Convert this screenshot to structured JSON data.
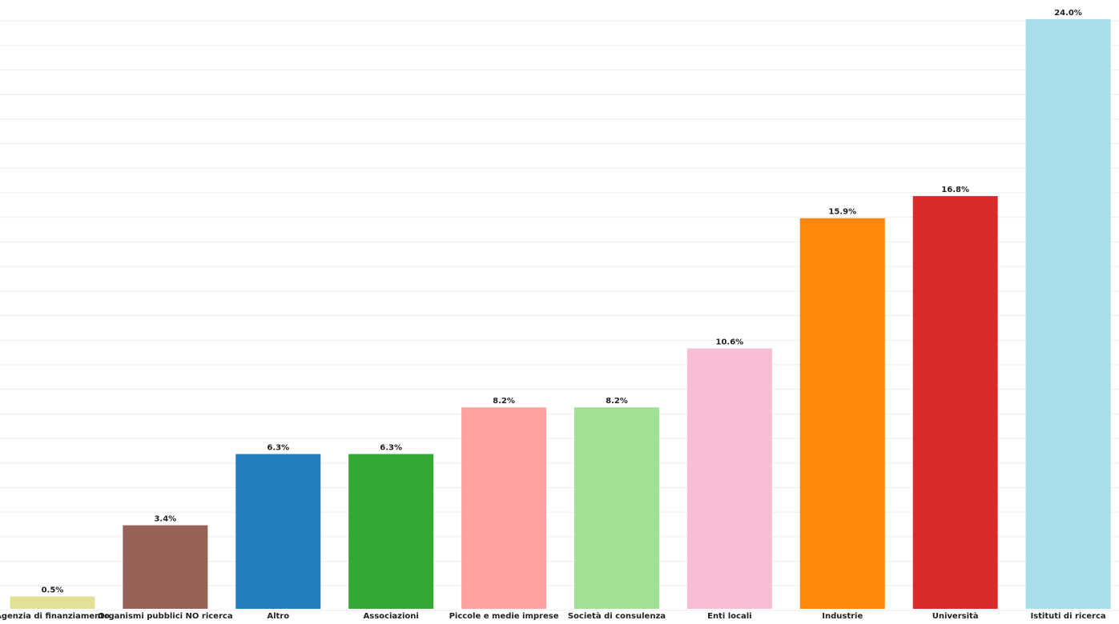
{
  "chart_data": {
    "type": "bar",
    "categories": [
      "Agenzia di finanziamento",
      "Organismi pubblici NO ricerca",
      "Altro",
      "Associazioni",
      "Piccole e medie imprese",
      "Società di consulenza",
      "Enti locali",
      "Industrie",
      "Università",
      "Istituti di ricerca"
    ],
    "values": [
      0.5,
      3.4,
      6.3,
      6.3,
      8.2,
      8.2,
      10.6,
      15.9,
      16.8,
      24.0
    ],
    "value_labels": [
      "0.5%",
      "3.4%",
      "6.3%",
      "6.3%",
      "8.2%",
      "8.2%",
      "10.6%",
      "15.9%",
      "16.8%",
      "24.0%"
    ],
    "colors": [
      "#e2e196",
      "#976257",
      "#2380bc",
      "#33a835",
      "#ffa3a2",
      "#a1e194",
      "#f7bdd5",
      "#ff880c",
      "#da2a2b",
      "#a7dee7"
    ],
    "ylim": [
      0,
      24
    ],
    "yticks": [
      0,
      1,
      2,
      3,
      4,
      5,
      6,
      7,
      8,
      9,
      10,
      11,
      12,
      13,
      14,
      15,
      16,
      17,
      18,
      19,
      20,
      21,
      22,
      23,
      24
    ],
    "grid": true
  }
}
